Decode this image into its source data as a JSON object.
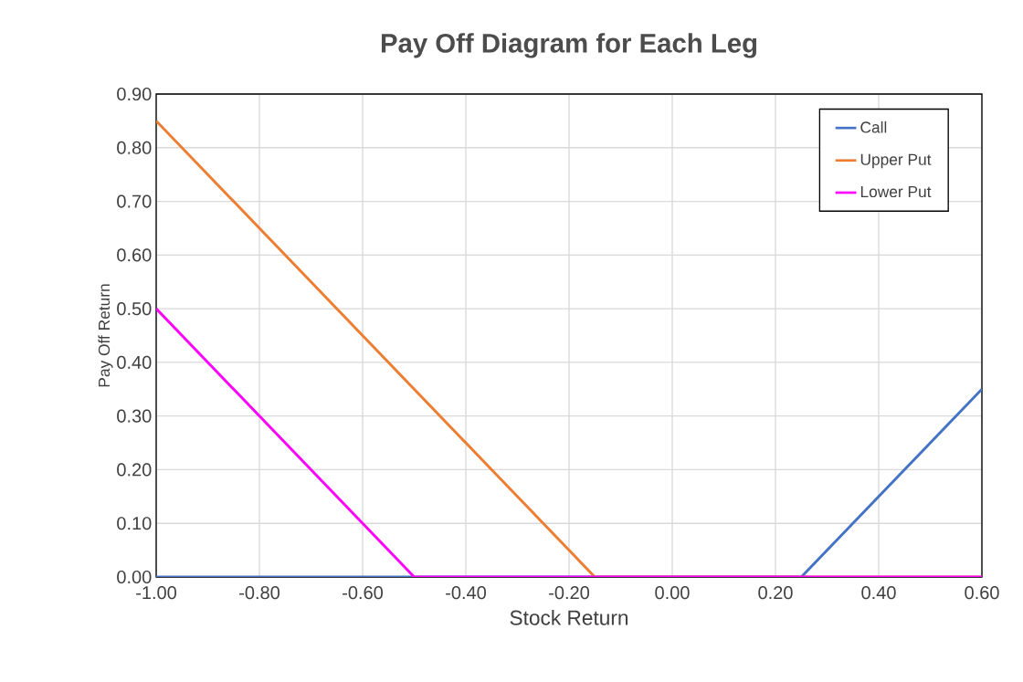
{
  "chart_data": {
    "type": "line",
    "title": "Pay Off Diagram for Each Leg",
    "xlabel": "Stock Return",
    "ylabel": "Pay Off Return",
    "series": [
      {
        "name": "Call",
        "color": "#4472c4",
        "x": [
          -1.0,
          0.25,
          0.6
        ],
        "values": [
          0,
          0,
          0.35
        ]
      },
      {
        "name": "Upper Put",
        "color": "#ed7d31",
        "x": [
          -1.0,
          -0.15,
          0.6
        ],
        "values": [
          0.85,
          0,
          0
        ]
      },
      {
        "name": "Lower Put",
        "color": "#ff00ff",
        "x": [
          -1.0,
          -0.5,
          0.6
        ],
        "values": [
          0.5,
          0,
          0
        ]
      }
    ],
    "xlim": [
      -1.0,
      0.6
    ],
    "xticks": [
      {
        "value": -1.0,
        "label": "-1.00"
      },
      {
        "value": -0.8,
        "label": "-0.80"
      },
      {
        "value": -0.6,
        "label": "-0.60"
      },
      {
        "value": -0.4,
        "label": "-0.40"
      },
      {
        "value": -0.2,
        "label": "-0.20"
      },
      {
        "value": 0,
        "label": "0.00"
      },
      {
        "value": 0.2,
        "label": "0.20"
      },
      {
        "value": 0.4,
        "label": "0.40"
      },
      {
        "value": 0.6,
        "label": "0.60"
      }
    ],
    "ylim": [
      0,
      0.9
    ],
    "yticks": [
      {
        "value": 0,
        "label": "0.00"
      },
      {
        "value": 0.1,
        "label": "0.10"
      },
      {
        "value": 0.2,
        "label": "0.20"
      },
      {
        "value": 0.3,
        "label": "0.30"
      },
      {
        "value": 0.4,
        "label": "0.40"
      },
      {
        "value": 0.5,
        "label": "0.50"
      },
      {
        "value": 0.6,
        "label": "0.60"
      },
      {
        "value": 0.7,
        "label": "0.70"
      },
      {
        "value": 0.8,
        "label": "0.80"
      },
      {
        "value": 0.9,
        "label": "0.90"
      }
    ],
    "grid": true,
    "legend": "top right"
  }
}
